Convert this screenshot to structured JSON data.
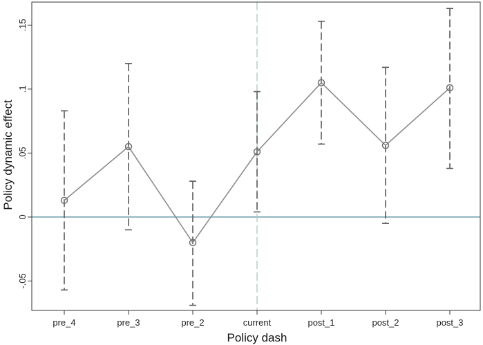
{
  "chart_data": {
    "type": "line",
    "title": "",
    "xlabel": "Policy dash",
    "ylabel": "Policy dynamic effect",
    "categories": [
      "pre_4",
      "pre_3",
      "pre_2",
      "current",
      "post_1",
      "post_2",
      "post_3"
    ],
    "series": [
      {
        "values": [
          0.013,
          0.055,
          -0.02,
          0.051,
          0.105,
          0.056,
          0.101
        ],
        "ci_lower": [
          -0.057,
          -0.01,
          -0.069,
          0.004,
          0.057,
          -0.005,
          0.038
        ],
        "ci_upper": [
          0.083,
          0.12,
          0.028,
          0.098,
          0.153,
          0.117,
          0.163
        ]
      }
    ],
    "ylim": [
      -0.073,
      0.168
    ],
    "yticks": [
      -0.05,
      0,
      0.05,
      0.1,
      0.15
    ],
    "ytick_labels": [
      "-.05",
      "0",
      ".05",
      ".1",
      ".15"
    ],
    "reference_lines": {
      "horizontal_y": 0,
      "vertical_category": "current"
    },
    "grid": false,
    "legend": "none",
    "colors": {
      "line": "#8c8c8c",
      "markers": "#6e6e6e",
      "error_bars": "#5a5a5a",
      "zero_line": "#6a9bab",
      "vertical_line": "#a9c8c0",
      "frame": "#333333"
    }
  }
}
